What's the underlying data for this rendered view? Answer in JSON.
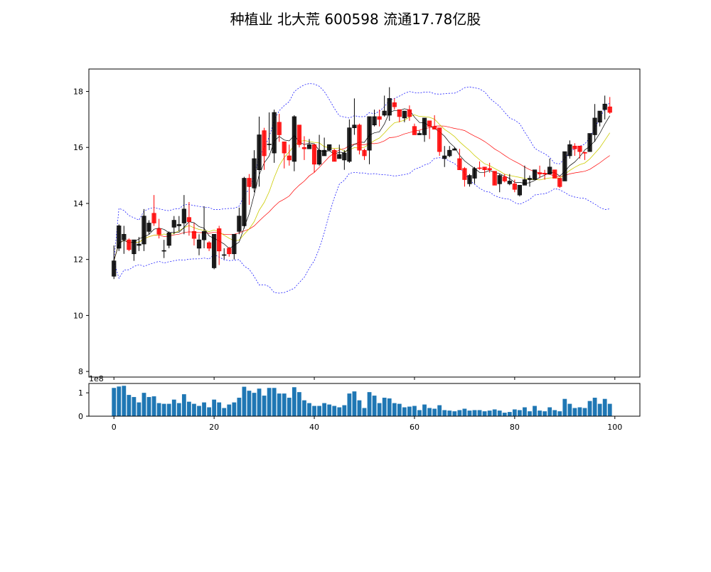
{
  "title": "种植业 北大荒 600598 流通17.78亿股",
  "chart_data": [
    {
      "type": "candlestick",
      "title": "种植业 北大荒 600598 流通17.78亿股",
      "xlim": [
        -5,
        105
      ],
      "ylim": [
        7.8,
        18.8
      ],
      "yticks": [
        8,
        10,
        12,
        14,
        16,
        18
      ],
      "grid": false,
      "colors": {
        "up": "#000000",
        "down": "#ff0000",
        "ma5": "#000000",
        "ma10": "#cccc00",
        "ma20": "#ff0000",
        "boll": "#0000ff"
      },
      "overlays": [
        "MA5",
        "MA10",
        "MA20",
        "Bollinger upper",
        "Bollinger lower"
      ],
      "ohlc_fields": [
        "open",
        "high",
        "low",
        "close"
      ],
      "ohlc": [
        [
          11.4,
          12.5,
          11.3,
          11.95
        ],
        [
          12.4,
          13.25,
          12.3,
          13.2
        ],
        [
          12.7,
          13.2,
          12.2,
          12.9
        ],
        [
          12.7,
          12.75,
          12.3,
          12.35
        ],
        [
          12.2,
          12.7,
          11.95,
          12.7
        ],
        [
          12.5,
          12.8,
          12.3,
          12.55
        ],
        [
          12.55,
          13.8,
          12.3,
          13.55
        ],
        [
          13.0,
          13.4,
          12.9,
          13.3
        ],
        [
          13.65,
          14.3,
          13.2,
          13.3
        ],
        [
          13.1,
          13.45,
          12.75,
          12.9
        ],
        [
          12.3,
          12.7,
          12.05,
          12.32
        ],
        [
          12.5,
          13.0,
          12.4,
          12.95
        ],
        [
          13.15,
          13.55,
          12.9,
          13.4
        ],
        [
          13.2,
          13.55,
          13.0,
          13.25
        ],
        [
          13.3,
          14.3,
          12.9,
          13.8
        ],
        [
          13.5,
          14.05,
          12.85,
          13.35
        ],
        [
          13.0,
          13.3,
          12.5,
          12.75
        ],
        [
          12.4,
          12.9,
          12.15,
          12.7
        ],
        [
          12.7,
          13.9,
          12.4,
          13.0
        ],
        [
          12.6,
          12.65,
          12.3,
          12.4
        ],
        [
          11.7,
          12.9,
          11.65,
          12.9
        ],
        [
          13.1,
          13.2,
          11.8,
          12.3
        ],
        [
          12.15,
          12.4,
          12.0,
          12.17
        ],
        [
          12.4,
          12.45,
          12.1,
          12.2
        ],
        [
          12.2,
          12.9,
          12.0,
          12.9
        ],
        [
          13.0,
          13.85,
          12.9,
          13.55
        ],
        [
          13.2,
          14.95,
          13.1,
          14.9
        ],
        [
          14.9,
          15.05,
          13.95,
          14.6
        ],
        [
          14.55,
          15.9,
          14.4,
          15.6
        ],
        [
          15.2,
          17.1,
          14.6,
          16.45
        ],
        [
          16.6,
          16.7,
          15.2,
          15.7
        ],
        [
          16.1,
          17.25,
          15.9,
          16.12
        ],
        [
          15.8,
          17.35,
          15.45,
          17.25
        ],
        [
          16.9,
          17.2,
          16.2,
          16.45
        ],
        [
          16.2,
          16.2,
          15.25,
          15.8
        ],
        [
          15.7,
          16.1,
          15.35,
          15.55
        ],
        [
          15.5,
          17.15,
          15.15,
          17.1
        ],
        [
          16.8,
          16.8,
          16.0,
          16.1
        ],
        [
          16.0,
          16.4,
          15.55,
          15.95
        ],
        [
          15.95,
          16.3,
          15.95,
          16.1
        ],
        [
          16.1,
          16.1,
          15.1,
          15.4
        ],
        [
          15.4,
          16.45,
          15.35,
          15.9
        ],
        [
          15.7,
          16.35,
          15.7,
          15.9
        ],
        [
          15.9,
          16.1,
          15.9,
          16.1
        ],
        [
          15.9,
          15.95,
          15.5,
          15.5
        ],
        [
          15.6,
          16.1,
          15.6,
          15.75
        ],
        [
          15.55,
          15.9,
          15.2,
          15.8
        ],
        [
          15.5,
          17.0,
          15.45,
          16.7
        ],
        [
          16.7,
          17.75,
          16.45,
          16.8
        ],
        [
          16.8,
          16.85,
          15.75,
          15.9
        ],
        [
          15.9,
          15.95,
          15.55,
          15.7
        ],
        [
          15.9,
          17.1,
          15.4,
          17.1
        ],
        [
          16.8,
          17.35,
          16.75,
          17.1
        ],
        [
          17.1,
          17.35,
          16.75,
          17.0
        ],
        [
          17.15,
          17.85,
          17.1,
          17.3
        ],
        [
          17.15,
          18.15,
          16.95,
          17.75
        ],
        [
          17.6,
          17.75,
          17.35,
          17.45
        ],
        [
          17.35,
          17.35,
          16.9,
          17.1
        ],
        [
          17.05,
          17.3,
          16.9,
          17.3
        ],
        [
          17.35,
          17.5,
          16.95,
          17.1
        ],
        [
          16.75,
          16.85,
          16.45,
          16.45
        ],
        [
          16.45,
          16.6,
          16.45,
          16.5
        ],
        [
          16.45,
          17.05,
          16.2,
          17.05
        ],
        [
          16.95,
          16.95,
          16.3,
          16.75
        ],
        [
          16.75,
          17.15,
          16.65,
          16.65
        ],
        [
          16.7,
          16.7,
          15.7,
          15.85
        ],
        [
          15.6,
          16.05,
          15.3,
          15.7
        ],
        [
          15.7,
          16.05,
          15.65,
          15.9
        ],
        [
          15.9,
          16.0,
          15.9,
          15.95
        ],
        [
          15.6,
          15.95,
          15.2,
          15.2
        ],
        [
          15.25,
          15.3,
          14.6,
          14.85
        ],
        [
          14.7,
          15.05,
          14.6,
          15.0
        ],
        [
          14.9,
          15.3,
          14.7,
          15.25
        ],
        [
          15.27,
          15.5,
          15.2,
          15.25
        ],
        [
          15.3,
          15.3,
          14.95,
          15.2
        ],
        [
          15.25,
          15.45,
          15.1,
          15.2
        ],
        [
          15.15,
          15.15,
          14.65,
          14.65
        ],
        [
          14.7,
          15.05,
          14.4,
          15.0
        ],
        [
          14.95,
          15.05,
          14.75,
          14.8
        ],
        [
          14.7,
          15.05,
          14.65,
          14.8
        ],
        [
          14.7,
          14.85,
          14.4,
          14.5
        ],
        [
          14.3,
          14.65,
          14.25,
          14.65
        ],
        [
          14.65,
          15.35,
          14.65,
          14.85
        ],
        [
          14.85,
          15.0,
          14.6,
          14.9
        ],
        [
          14.85,
          15.2,
          14.85,
          15.2
        ],
        [
          15.1,
          15.35,
          14.9,
          15.05
        ],
        [
          15.08,
          15.2,
          14.85,
          15.05
        ],
        [
          15.05,
          15.6,
          15.05,
          15.3
        ],
        [
          15.2,
          15.2,
          14.9,
          14.9
        ],
        [
          14.9,
          14.9,
          14.55,
          14.6
        ],
        [
          14.8,
          15.85,
          14.8,
          15.85
        ],
        [
          15.7,
          16.25,
          15.6,
          16.1
        ],
        [
          16.05,
          16.15,
          15.7,
          15.95
        ],
        [
          16.05,
          16.05,
          15.6,
          15.85
        ],
        [
          15.82,
          15.85,
          15.55,
          15.8
        ],
        [
          15.85,
          16.5,
          15.85,
          16.5
        ],
        [
          16.45,
          17.55,
          16.2,
          17.05
        ],
        [
          16.9,
          17.3,
          16.75,
          17.3
        ],
        [
          17.35,
          17.85,
          17.0,
          17.55
        ],
        [
          17.45,
          17.8,
          17.2,
          17.25
        ]
      ]
    },
    {
      "type": "bar",
      "ylim": [
        0,
        1.4
      ],
      "yticks": [
        0,
        1
      ],
      "y_offset_label": "1e8",
      "xlim": [
        -5,
        105
      ],
      "xticks": [
        0,
        20,
        40,
        60,
        80,
        100
      ],
      "color": "#1f77b4",
      "values": [
        1.21,
        1.27,
        1.3,
        0.91,
        0.82,
        0.59,
        1.0,
        0.82,
        0.85,
        0.56,
        0.53,
        0.53,
        0.71,
        0.56,
        0.94,
        0.62,
        0.53,
        0.44,
        0.59,
        0.38,
        0.71,
        0.59,
        0.35,
        0.5,
        0.59,
        0.79,
        1.26,
        1.09,
        1.0,
        1.18,
        0.88,
        1.21,
        1.21,
        0.97,
        0.97,
        0.79,
        1.24,
        1.03,
        0.68,
        0.56,
        0.44,
        0.44,
        0.56,
        0.5,
        0.44,
        0.38,
        0.47,
        0.97,
        1.06,
        0.68,
        0.35,
        1.03,
        0.88,
        0.56,
        0.79,
        0.76,
        0.56,
        0.53,
        0.38,
        0.41,
        0.44,
        0.26,
        0.5,
        0.35,
        0.32,
        0.47,
        0.26,
        0.24,
        0.21,
        0.26,
        0.32,
        0.24,
        0.26,
        0.26,
        0.21,
        0.24,
        0.29,
        0.24,
        0.15,
        0.18,
        0.29,
        0.26,
        0.38,
        0.21,
        0.44,
        0.24,
        0.21,
        0.38,
        0.26,
        0.21,
        0.74,
        0.53,
        0.35,
        0.38,
        0.35,
        0.65,
        0.79,
        0.53,
        0.74,
        0.53
      ]
    }
  ]
}
